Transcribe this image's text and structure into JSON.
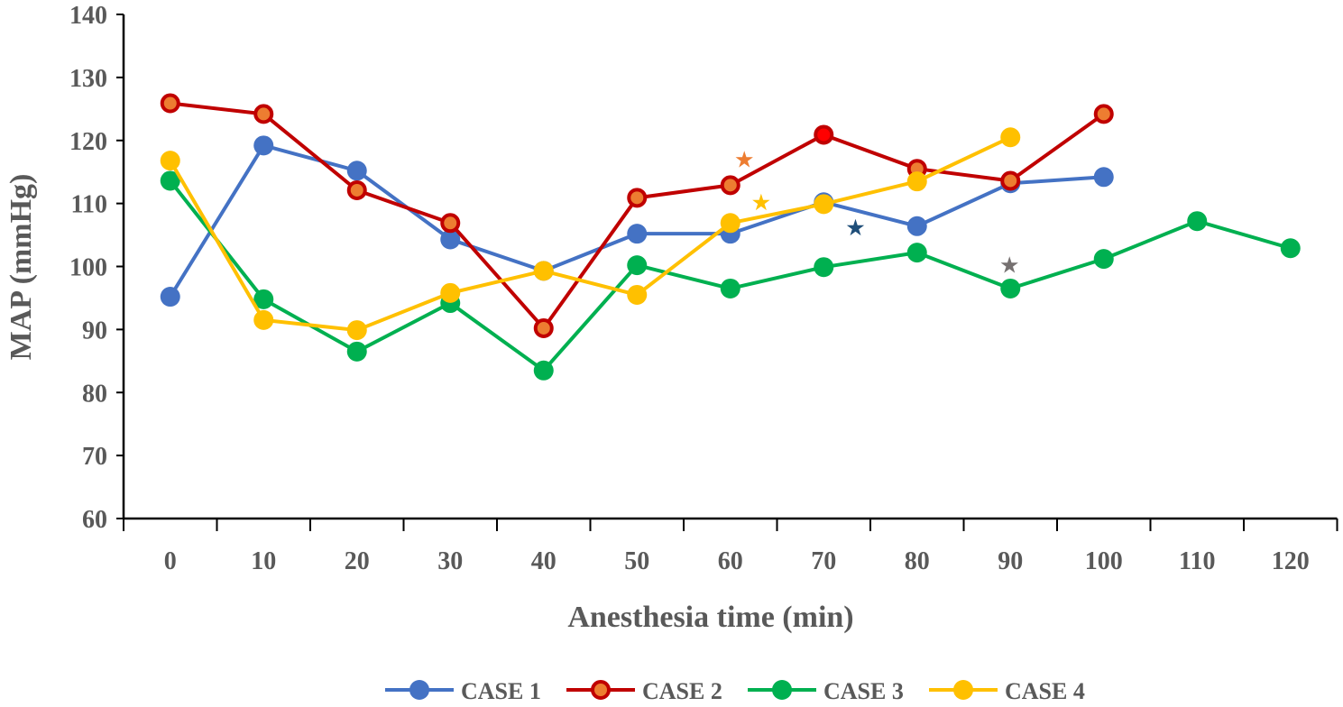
{
  "chart_data": {
    "type": "line",
    "title": "",
    "xlabel": "Anesthesia time (min)",
    "ylabel": "MAP (mmHg)",
    "ylim": [
      60,
      140
    ],
    "yticks": [
      60,
      70,
      80,
      90,
      100,
      110,
      120,
      130,
      140
    ],
    "categories": [
      "0",
      "10",
      "20",
      "30",
      "40",
      "50",
      "60",
      "70",
      "80",
      "90",
      "100",
      "110",
      "120"
    ],
    "grid": false,
    "legend_placement": "bottom",
    "series": [
      {
        "name": "CASE 1",
        "color": "#4472C4",
        "fill": "#4472C4",
        "values": [
          95.2,
          119.2,
          115.2,
          104.3,
          99.3,
          105.2,
          105.2,
          110.2,
          106.4,
          113.2,
          114.2,
          null,
          null
        ]
      },
      {
        "name": "CASE 2",
        "color": "#C00000",
        "fill": "#ED7D31",
        "values": [
          125.9,
          124.2,
          112.1,
          106.9,
          90.2,
          110.9,
          112.9,
          120.9,
          115.5,
          113.6,
          124.2,
          null,
          null
        ]
      },
      {
        "name": "CASE 3",
        "color": "#00B050",
        "fill": "#00B050",
        "values": [
          113.6,
          94.8,
          86.5,
          94.2,
          83.5,
          100.2,
          96.5,
          99.9,
          102.2,
          96.5,
          101.2,
          107.2,
          102.9
        ]
      },
      {
        "name": "CASE 4",
        "color": "#FFC000",
        "fill": "#FFC000",
        "values": [
          116.8,
          91.5,
          89.9,
          95.8,
          99.3,
          95.5,
          106.9,
          109.9,
          113.5,
          120.5,
          null,
          null,
          null
        ]
      }
    ],
    "annotations": [
      {
        "symbol": "★",
        "color": "#ED7D31",
        "x": 61.5,
        "y": 117
      },
      {
        "symbol": "★",
        "color": "#FFC000",
        "x": 63.3,
        "y": 110.2
      },
      {
        "symbol": "★",
        "color": "#1F4E79",
        "x": 73.4,
        "y": 106.2
      },
      {
        "symbol": "★",
        "color": "#767171",
        "x": 89.9,
        "y": 100.3
      }
    ]
  }
}
